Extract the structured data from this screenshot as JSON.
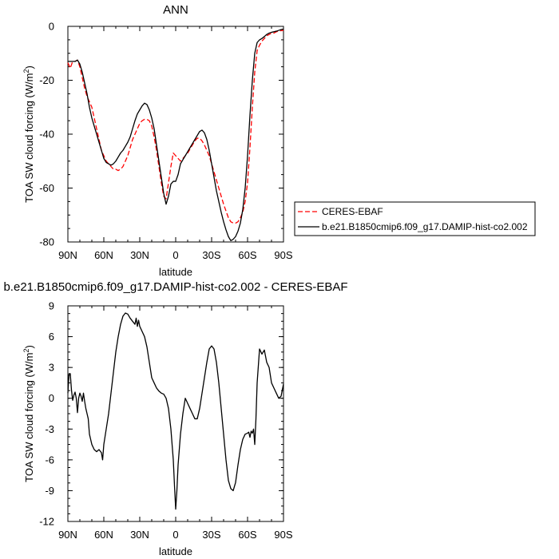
{
  "chart_data": [
    {
      "type": "line",
      "title": "ANN",
      "xlabel": "latitude",
      "ylabel": "TOA SW cloud forcing (W/m",
      "ylabel_sup": "2",
      "ylabel_close": ")",
      "xlim": [
        90,
        -90
      ],
      "ylim": [
        -80,
        0
      ],
      "x_ticks": [
        90,
        60,
        30,
        0,
        -30,
        -60,
        -90
      ],
      "x_tick_labels": [
        "90N",
        "60N",
        "30N",
        "0",
        "30S",
        "60S",
        "90S"
      ],
      "y_ticks": [
        0,
        -20,
        -40,
        -60,
        -80
      ],
      "y_tick_labels": [
        "0",
        "-20",
        "-40",
        "-60",
        "-80"
      ],
      "legend_position": "right",
      "series": [
        {
          "name": "CERES-EBAF",
          "color": "#ff0000",
          "dash": "dashed",
          "x": [
            90,
            88,
            86,
            84,
            82,
            80,
            78,
            76,
            74,
            72,
            70,
            68,
            66,
            64,
            62,
            60,
            58,
            56,
            54,
            52,
            50,
            48,
            46,
            44,
            42,
            40,
            38,
            36,
            34,
            32,
            30,
            28,
            26,
            24,
            22,
            20,
            18,
            16,
            14,
            12,
            10,
            8,
            6,
            4,
            2,
            0,
            -2,
            -4,
            -6,
            -8,
            -10,
            -12,
            -14,
            -16,
            -18,
            -20,
            -22,
            -24,
            -26,
            -28,
            -30,
            -32,
            -34,
            -36,
            -38,
            -40,
            -42,
            -44,
            -46,
            -48,
            -50,
            -52,
            -54,
            -56,
            -58,
            -60,
            -62,
            -64,
            -66,
            -68,
            -70,
            -72,
            -74,
            -76,
            -78,
            -80,
            -82,
            -84,
            -86,
            -88,
            -90
          ],
          "y": [
            -13.5,
            -15.5,
            -13,
            -13,
            -12.5,
            -15,
            -19,
            -23,
            -26,
            -28,
            -30,
            -34,
            -38,
            -42,
            -46,
            -48,
            -50,
            -51,
            -52,
            -53,
            -53,
            -53.5,
            -53,
            -52,
            -50,
            -48,
            -45,
            -42,
            -40,
            -38,
            -36,
            -35,
            -34.5,
            -34.5,
            -35,
            -37,
            -41,
            -46,
            -52,
            -58,
            -63,
            -64,
            -58,
            -52,
            -47,
            -48,
            -49,
            -50,
            -49,
            -48,
            -47,
            -45.5,
            -44,
            -42.5,
            -41.5,
            -41.5,
            -42.5,
            -44,
            -46,
            -48,
            -51,
            -54,
            -57,
            -60,
            -63,
            -66,
            -68.5,
            -71,
            -72.5,
            -73,
            -73,
            -72.5,
            -71,
            -69,
            -65,
            -58,
            -45,
            -30,
            -17,
            -9,
            -7,
            -5.5,
            -4.5,
            -3.5,
            -3,
            -2.5,
            -2.5,
            -2,
            -1.8,
            -1.6,
            -1.5
          ]
        },
        {
          "name": "b.e21.B1850cmip6.f09_g17.DAMIP-hist-co2.002",
          "color": "#000000",
          "dash": "solid",
          "x": [
            90,
            88,
            86,
            84,
            82,
            80,
            78,
            76,
            74,
            72,
            70,
            68,
            66,
            64,
            62,
            60,
            58,
            56,
            54,
            52,
            50,
            48,
            46,
            44,
            42,
            40,
            38,
            36,
            34,
            32,
            30,
            28,
            26,
            24,
            22,
            20,
            18,
            16,
            14,
            12,
            10,
            8,
            6,
            4,
            2,
            0,
            -2,
            -4,
            -6,
            -8,
            -10,
            -12,
            -14,
            -16,
            -18,
            -20,
            -22,
            -24,
            -26,
            -28,
            -30,
            -32,
            -34,
            -36,
            -38,
            -40,
            -42,
            -44,
            -46,
            -48,
            -50,
            -52,
            -54,
            -56,
            -58,
            -60,
            -62,
            -64,
            -66,
            -68,
            -70,
            -72,
            -74,
            -76,
            -78,
            -80,
            -82,
            -84,
            -86,
            -88,
            -90
          ],
          "y": [
            -13,
            -13,
            -13,
            -13,
            -12.5,
            -14,
            -17,
            -21,
            -25,
            -30,
            -34,
            -37,
            -40,
            -43,
            -46,
            -49,
            -50.5,
            -51,
            -51.5,
            -51,
            -50,
            -48.5,
            -47,
            -46,
            -44.5,
            -43,
            -41,
            -38,
            -35,
            -32.5,
            -31,
            -29.5,
            -28.5,
            -29,
            -31,
            -34,
            -38,
            -44,
            -50,
            -56,
            -62,
            -66,
            -63,
            -58.5,
            -57.5,
            -57.5,
            -55,
            -51,
            -49.5,
            -48,
            -46.5,
            -45,
            -43.5,
            -42,
            -40.5,
            -39,
            -38.5,
            -39.5,
            -42,
            -46,
            -51,
            -56,
            -61,
            -65,
            -69,
            -72.5,
            -75.5,
            -78,
            -79.5,
            -79,
            -78,
            -76,
            -73,
            -68,
            -60,
            -48,
            -33,
            -20,
            -10,
            -6,
            -5,
            -4.5,
            -3.8,
            -3,
            -2.5,
            -2.2,
            -2,
            -1.8,
            -1.5,
            -1.2,
            -1
          ]
        }
      ]
    },
    {
      "type": "line",
      "title": "b.e21.B1850cmip6.f09_g17.DAMIP-hist-co2.002 - CERES-EBAF",
      "xlabel": "latitude",
      "ylabel": "TOA SW cloud forcing (W/m",
      "ylabel_sup": "2",
      "ylabel_close": ")",
      "xlim": [
        90,
        -90
      ],
      "ylim": [
        -12,
        9
      ],
      "x_ticks": [
        90,
        60,
        30,
        0,
        -30,
        -60,
        -90
      ],
      "x_tick_labels": [
        "90N",
        "60N",
        "30N",
        "0",
        "30S",
        "60S",
        "90S"
      ],
      "y_ticks": [
        9,
        6,
        3,
        0,
        -3,
        -6,
        -9,
        -12
      ],
      "y_tick_labels": [
        "9",
        "6",
        "3",
        "0",
        "-3",
        "-6",
        "-9",
        "-12"
      ],
      "series": [
        {
          "color": "#000000",
          "dash": "solid",
          "x": [
            90,
            89,
            88,
            87,
            86,
            85,
            84,
            83,
            82,
            81,
            80,
            79,
            78,
            77,
            76,
            75,
            74,
            73,
            72,
            71,
            70,
            68,
            66,
            64,
            62,
            61,
            60,
            58,
            56,
            54,
            52,
            50,
            48,
            46,
            44,
            42,
            40,
            38,
            36,
            34,
            33,
            32,
            31,
            30,
            28,
            26,
            24,
            22,
            20,
            18,
            16,
            14,
            12,
            10,
            8,
            6,
            4,
            2,
            1,
            0,
            -1,
            -2,
            -4,
            -6,
            -8,
            -10,
            -12,
            -14,
            -16,
            -18,
            -20,
            -22,
            -24,
            -26,
            -28,
            -30,
            -32,
            -34,
            -36,
            -38,
            -40,
            -42,
            -44,
            -46,
            -48,
            -50,
            -52,
            -54,
            -56,
            -58,
            -60,
            -61,
            -62,
            -63,
            -64,
            -65,
            -66,
            -67,
            -68,
            -70,
            -72,
            -74,
            -76,
            -78,
            -80,
            -82,
            -84,
            -86,
            -88,
            -90
          ],
          "y": [
            0.5,
            2.4,
            2.4,
            0.8,
            -0.2,
            0.3,
            0.6,
            0.0,
            -1.4,
            0.0,
            0.5,
            0.2,
            -0.3,
            0.5,
            -0.3,
            -1.0,
            -1.5,
            -2.0,
            -3.5,
            -4.0,
            -4.5,
            -5.0,
            -5.2,
            -5.0,
            -5.3,
            -6.0,
            -4.5,
            -3.0,
            -1.5,
            0.5,
            2.5,
            4.5,
            6.0,
            7.2,
            8.0,
            8.3,
            8.2,
            7.8,
            7.5,
            7.2,
            7.8,
            7.0,
            7.6,
            7.0,
            6.5,
            6.0,
            5.0,
            3.5,
            2.0,
            1.5,
            1.0,
            0.7,
            0.5,
            0.4,
            0.0,
            -1.0,
            -3.0,
            -6.0,
            -8.5,
            -10.8,
            -9.0,
            -6.5,
            -3.5,
            -1.5,
            0.0,
            -0.5,
            -1.0,
            -1.5,
            -2.0,
            -2.0,
            -1.0,
            0.5,
            2.0,
            3.5,
            4.8,
            5.1,
            4.8,
            3.5,
            1.5,
            -1.0,
            -3.5,
            -6.0,
            -8.0,
            -8.8,
            -9.0,
            -8.2,
            -6.5,
            -5.0,
            -4.0,
            -3.5,
            -3.4,
            -3.3,
            -3.8,
            -3.2,
            -3.4,
            -3.0,
            -4.5,
            -2.0,
            1.5,
            4.8,
            4.3,
            4.7,
            3.5,
            3.0,
            1.5,
            1.0,
            0.5,
            0.0,
            0.2,
            1.4
          ]
        }
      ]
    }
  ]
}
